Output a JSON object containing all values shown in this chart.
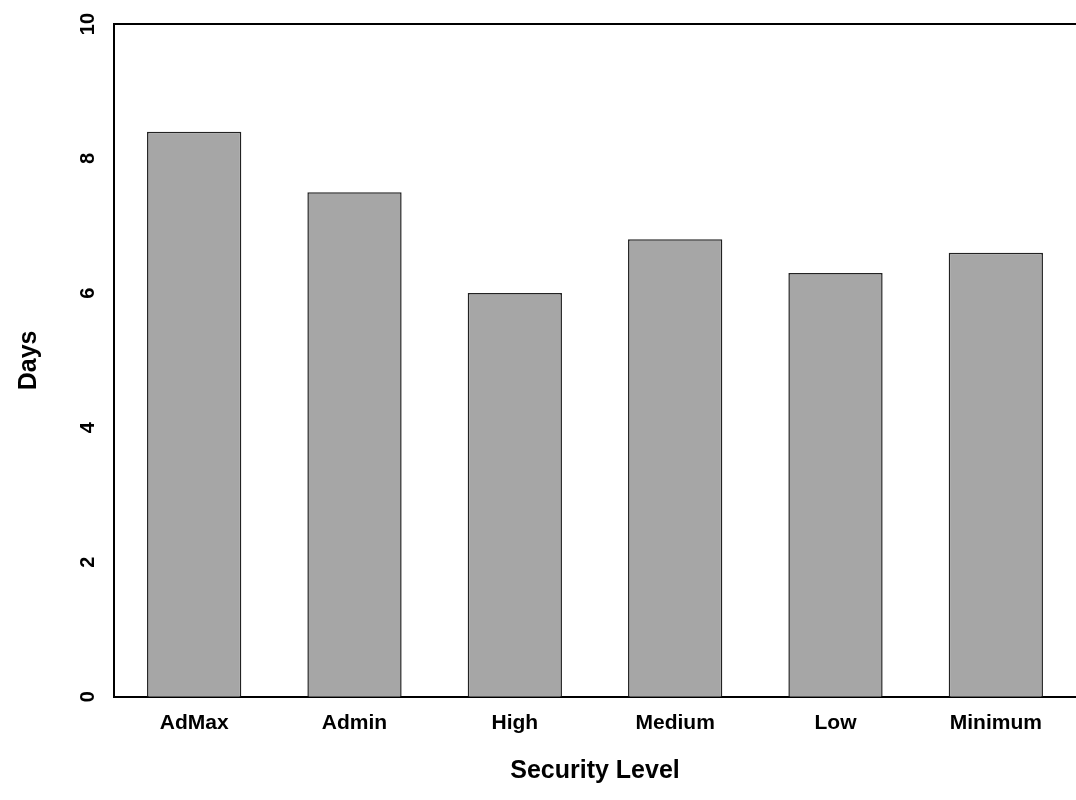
{
  "chart_data": {
    "type": "bar",
    "xlabel": "Security Level",
    "ylabel": "Days",
    "categories": [
      "AdMax",
      "Admin",
      "High",
      "Medium",
      "Low",
      "Minimum"
    ],
    "values": [
      8.4,
      7.5,
      6.0,
      6.8,
      6.3,
      6.6
    ],
    "color": "#a6a6a6",
    "ylim": [
      0,
      10
    ],
    "yticks": [
      0,
      2,
      4,
      6,
      8,
      10
    ],
    "grid": false,
    "legend": false
  }
}
